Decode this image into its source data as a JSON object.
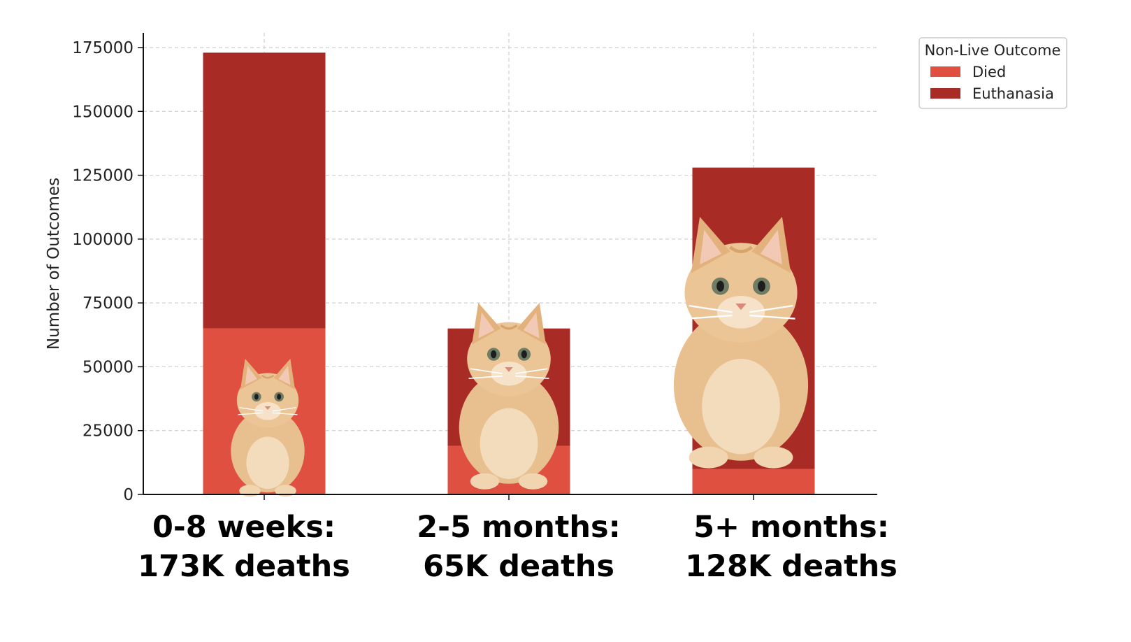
{
  "chart_data": {
    "type": "bar",
    "stacked": true,
    "ylabel": "Number of Outcomes",
    "ylim": [
      0,
      180000
    ],
    "yticks": [
      0,
      25000,
      50000,
      75000,
      100000,
      125000,
      150000,
      175000
    ],
    "grid": true,
    "categories": [
      "0-8 weeks",
      "2-5 months",
      "5+ months"
    ],
    "category_labels": [
      [
        "0-8 weeks:",
        "173K deaths"
      ],
      [
        "2-5 months:",
        "65K deaths"
      ],
      [
        "5+ months:",
        "128K deaths"
      ]
    ],
    "series": [
      {
        "name": "Died",
        "color": "#e05040",
        "values": [
          65000,
          19000,
          10000
        ]
      },
      {
        "name": "Euthanasia",
        "color": "#a82b26",
        "values": [
          108000,
          46000,
          118000
        ]
      }
    ],
    "legend": {
      "title": "Non-Live Outcome",
      "placement": "top-right, outside plot"
    },
    "images": [
      "newborn-kitten",
      "young-kitten",
      "adult-orange-cat"
    ]
  }
}
